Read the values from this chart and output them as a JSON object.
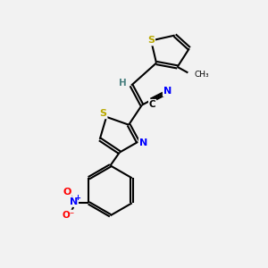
{
  "background_color": "#f2f2f2",
  "bond_color": "#000000",
  "atom_colors": {
    "S": "#b8a800",
    "N": "#0000ff",
    "O": "#ff0000",
    "C": "#000000",
    "H": "#4a8080"
  },
  "figsize": [
    3.0,
    3.0
  ],
  "dpi": 100
}
